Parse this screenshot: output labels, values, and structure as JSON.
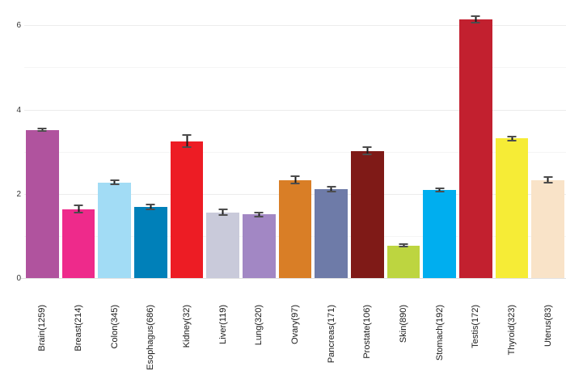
{
  "chart_data": {
    "type": "bar",
    "title": "",
    "xlabel": "",
    "ylabel": "",
    "categories": [
      "Brain(1259)",
      "Breast(214)",
      "Colon(345)",
      "Esophagus(686)",
      "Kidney(32)",
      "Liver(119)",
      "Lung(320)",
      "Ovary(97)",
      "Pancreas(171)",
      "Prostate(106)",
      "Skin(890)",
      "Stomach(192)",
      "Testis(172)",
      "Thyroid(323)",
      "Uterus(83)"
    ],
    "values": [
      3.54,
      1.66,
      2.29,
      1.71,
      3.27,
      1.58,
      1.53,
      2.35,
      2.13,
      3.04,
      0.79,
      2.11,
      6.16,
      3.33,
      2.35
    ],
    "errors": [
      0.03,
      0.08,
      0.05,
      0.05,
      0.14,
      0.07,
      0.05,
      0.09,
      0.06,
      0.08,
      0.03,
      0.04,
      0.07,
      0.04,
      0.07
    ],
    "bar_colors": [
      "#b0539e",
      "#ee2a8b",
      "#a2dcf5",
      "#0080b9",
      "#ed1c24",
      "#c9cada",
      "#a287c4",
      "#d97e26",
      "#6e7ba8",
      "#7f1a17",
      "#bdd540",
      "#00aeef",
      "#c2202f",
      "#f6ec36",
      "#f9e3c8"
    ],
    "yticks": [
      0,
      2,
      4,
      6
    ],
    "gridlines": [
      1,
      2,
      3,
      4,
      5,
      6
    ],
    "ylim": [
      0,
      6.62
    ],
    "grid": "horizontal only, light gray",
    "legend": "none",
    "xlabel_rotation_deg": 90,
    "error_bar_color": "#1c1c1c",
    "background_color": "#ffffff"
  }
}
